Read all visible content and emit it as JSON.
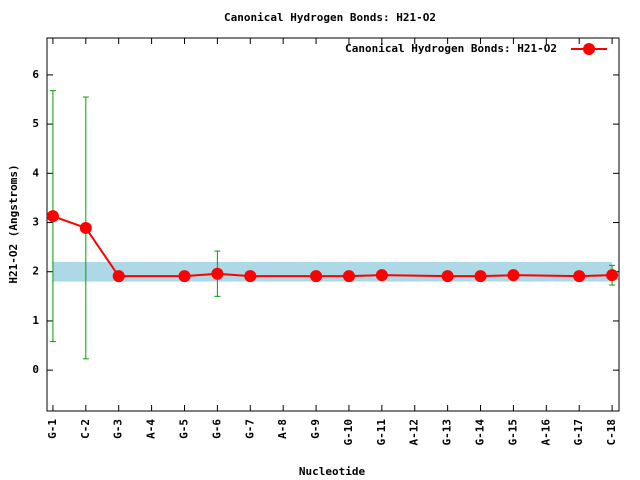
{
  "chart_data": {
    "type": "line",
    "title": "Canonical Hydrogen Bonds: H21-O2",
    "xlabel": "Nucleotide",
    "ylabel": "H21-O2 (Angstroms)",
    "x": [
      1,
      2,
      3,
      5,
      6,
      7,
      9,
      10,
      11,
      13,
      14,
      15,
      17,
      18
    ],
    "xlim": [
      0.82,
      18.21
    ],
    "xticks": [
      {
        "value": 1,
        "label": "G-1"
      },
      {
        "value": 2,
        "label": "C-2"
      },
      {
        "value": 3,
        "label": "G-3"
      },
      {
        "value": 4,
        "label": "A-4"
      },
      {
        "value": 5,
        "label": "G-5"
      },
      {
        "value": 6,
        "label": "G-6"
      },
      {
        "value": 7,
        "label": "G-7"
      },
      {
        "value": 8,
        "label": "A-8"
      },
      {
        "value": 9,
        "label": "G-9"
      },
      {
        "value": 10,
        "label": "G-10"
      },
      {
        "value": 11,
        "label": "G-11"
      },
      {
        "value": 12,
        "label": "A-12"
      },
      {
        "value": 13,
        "label": "G-13"
      },
      {
        "value": 14,
        "label": "G-14"
      },
      {
        "value": 15,
        "label": "G-15"
      },
      {
        "value": 16,
        "label": "A-16"
      },
      {
        "value": 17,
        "label": "G-17"
      },
      {
        "value": 18,
        "label": "C-18"
      }
    ],
    "ylim": [
      -0.83,
      6.75
    ],
    "yticks": [
      0,
      1,
      2,
      3,
      4,
      5,
      6
    ],
    "band": [
      1.8,
      2.2
    ],
    "band_color": "#add8e6",
    "series": [
      {
        "name": "Canonical Hydrogen Bonds: H21-O2",
        "color": "#ff0000",
        "values": [
          3.13,
          2.89,
          1.91,
          1.91,
          1.96,
          1.91,
          1.91,
          1.91,
          1.93,
          1.91,
          1.91,
          1.93,
          1.91,
          1.93
        ],
        "errors": [
          2.55,
          2.66,
          0.1,
          0.1,
          0.46,
          0.1,
          0.1,
          0.1,
          0.1,
          0.1,
          0.1,
          0.1,
          0.1,
          0.2
        ],
        "error_color": "#00a000"
      }
    ],
    "legend": "top-right"
  }
}
